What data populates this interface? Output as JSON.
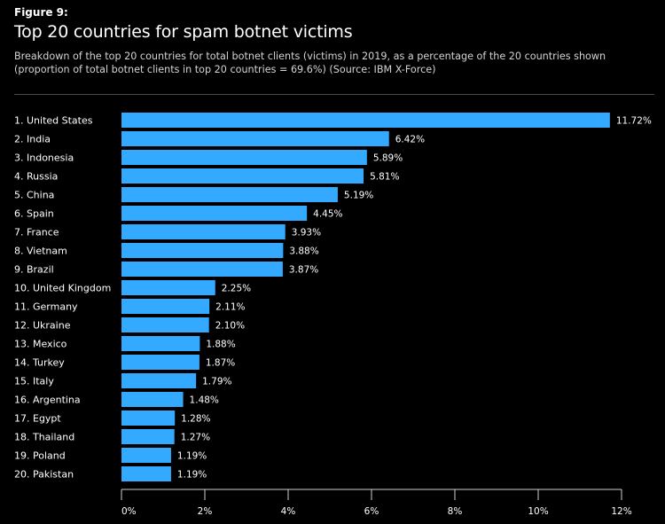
{
  "figure_label": "Figure 9:",
  "title": "Top 20 countries for spam botnet victims",
  "subtitle": "Breakdown of the top 20 countries for total botnet clients (victims) in 2019, as a percentage of the 20 countries shown (proportion of total botnet clients in top 20 countries = 69.6%) (Source: IBM X-Force)",
  "colors": {
    "background": "#000000",
    "bar": "#33aaff",
    "text": "#ffffff",
    "axis": "#d0d0d0"
  },
  "chart_data": {
    "type": "bar",
    "orientation": "horizontal",
    "categories": [
      "1. United States",
      "2. India",
      "3. Indonesia",
      "4. Russia",
      "5. China",
      "6. Spain",
      "7. France",
      "8. Vietnam",
      "9. Brazil",
      "10. United Kingdom",
      "11. Germany",
      "12. Ukraine",
      "13. Mexico",
      "14. Turkey",
      "15. Italy",
      "16. Argentina",
      "17. Egypt",
      "18. Thailand",
      "19. Poland",
      "20. Pakistan"
    ],
    "values": [
      11.72,
      6.42,
      5.89,
      5.81,
      5.19,
      4.45,
      3.93,
      3.88,
      3.87,
      2.25,
      2.11,
      2.1,
      1.88,
      1.87,
      1.79,
      1.48,
      1.28,
      1.27,
      1.19,
      1.19
    ],
    "value_labels": [
      "11.72%",
      "6.42%",
      "5.89%",
      "5.81%",
      "5.19%",
      "4.45%",
      "3.93%",
      "3.88%",
      "3.87%",
      "2.25%",
      "2.11%",
      "2.10%",
      "1.88%",
      "1.87%",
      "1.79%",
      "1.48%",
      "1.28%",
      "1.27%",
      "1.19%",
      "1.19%"
    ],
    "xlim": [
      0,
      12
    ],
    "x_ticks": [
      0,
      2,
      4,
      6,
      8,
      10,
      12
    ],
    "x_tick_labels": [
      "0%",
      "2%",
      "4%",
      "6%",
      "8%",
      "10%",
      "12%"
    ],
    "grid": false,
    "legend": "none"
  }
}
